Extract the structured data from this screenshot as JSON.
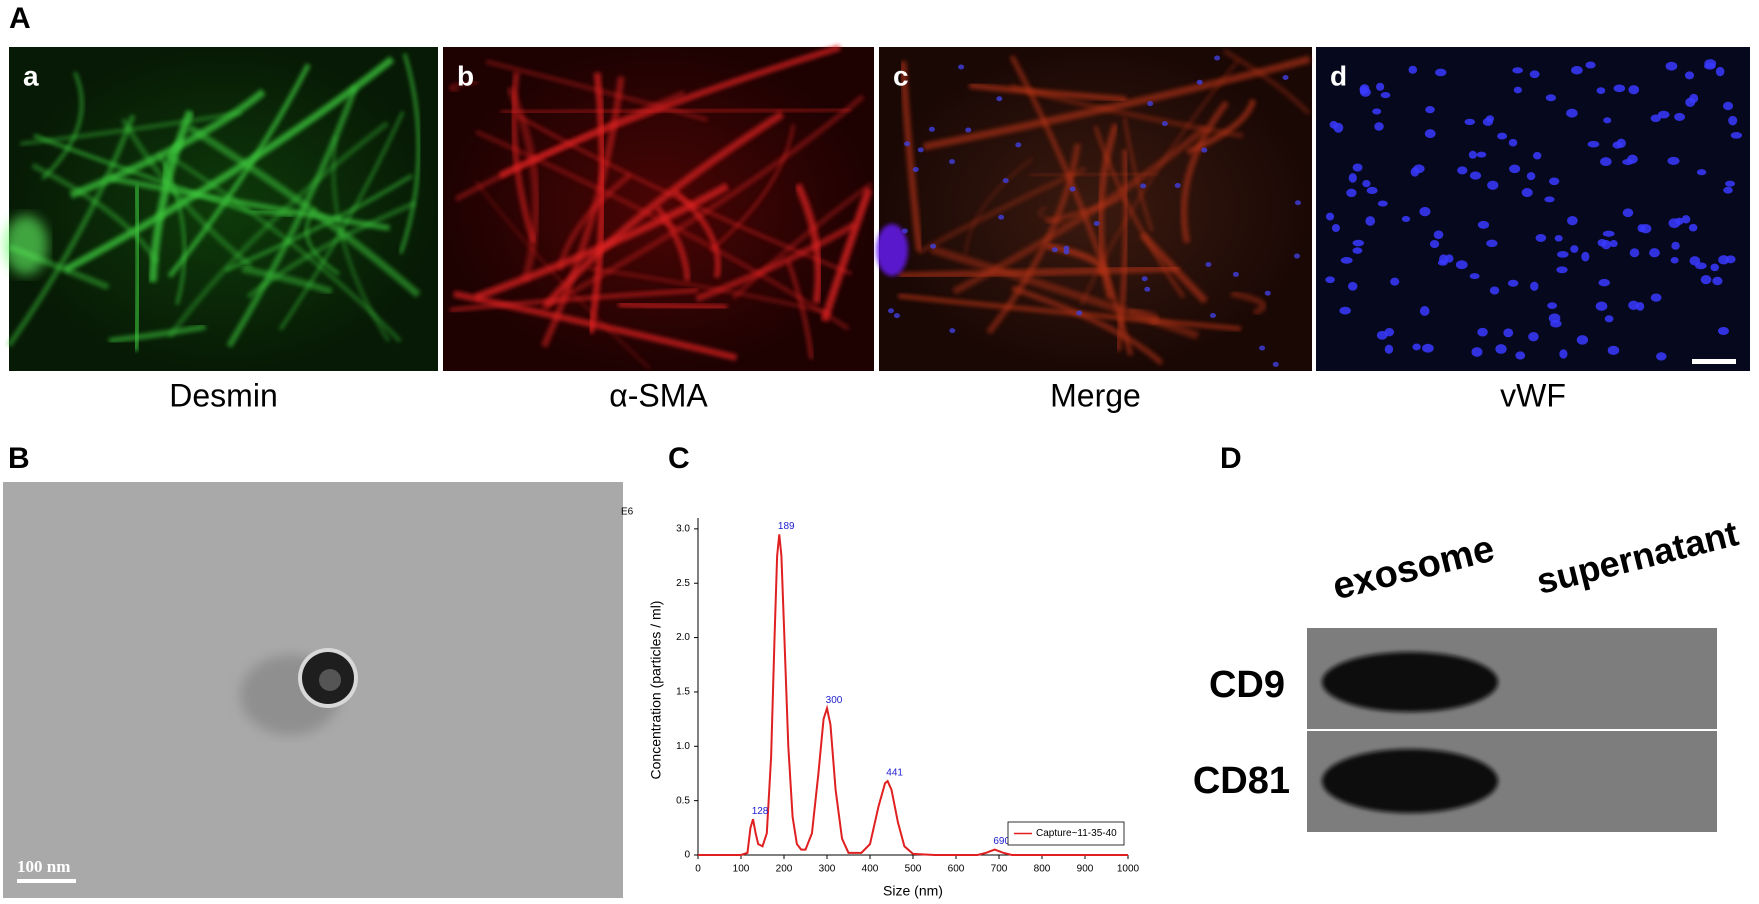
{
  "panel_a": {
    "letter": "A",
    "images": [
      {
        "letter": "a",
        "caption": "Desmin"
      },
      {
        "letter": "b",
        "caption": "α-SMA"
      },
      {
        "letter": "c",
        "caption": "Merge"
      },
      {
        "letter": "d",
        "caption": "vWF"
      }
    ]
  },
  "panel_b": {
    "letter": "B",
    "scale_bar": "100 nm"
  },
  "panel_c": {
    "letter": "C"
  },
  "chart_data": {
    "type": "line",
    "exponent_label": "E6",
    "x_label": "Size (nm)",
    "y_label": "Concentration (particles / ml)",
    "xlim": [
      0,
      1000
    ],
    "xticks": [
      0,
      100,
      200,
      300,
      400,
      500,
      600,
      700,
      800,
      900,
      1000
    ],
    "ylim": [
      0,
      3.1
    ],
    "yticks": [
      0,
      0.5,
      {
        "value": 1,
        "label": "1.0"
      },
      1.5,
      {
        "value": 2,
        "label": "2.0"
      },
      2.5,
      {
        "value": 3,
        "label": "3.0"
      }
    ],
    "x": [
      0,
      100,
      115,
      122,
      128,
      134,
      140,
      150,
      160,
      170,
      178,
      184,
      189,
      194,
      200,
      210,
      220,
      230,
      240,
      250,
      265,
      280,
      292,
      300,
      308,
      320,
      335,
      350,
      380,
      400,
      420,
      435,
      441,
      450,
      465,
      480,
      500,
      550,
      650,
      670,
      690,
      710,
      730,
      1000
    ],
    "series": [
      {
        "name": "Capture~11-35-40",
        "color": "#e02020",
        "values": [
          0,
          0,
          0.02,
          0.25,
          0.33,
          0.2,
          0.1,
          0.08,
          0.2,
          0.9,
          2.0,
          2.75,
          2.95,
          2.75,
          2.1,
          1.0,
          0.35,
          0.1,
          0.05,
          0.05,
          0.2,
          0.75,
          1.25,
          1.35,
          1.2,
          0.6,
          0.15,
          0.02,
          0.02,
          0.1,
          0.45,
          0.66,
          0.68,
          0.6,
          0.3,
          0.08,
          0.01,
          0,
          0,
          0.02,
          0.05,
          0.02,
          0,
          0
        ]
      }
    ],
    "peaks": [
      {
        "x": 128,
        "y": 0.33
      },
      {
        "x": 189,
        "y": 2.95
      },
      {
        "x": 300,
        "y": 1.35
      },
      {
        "x": 441,
        "y": 0.68
      },
      {
        "x": 690,
        "y": 0.05
      }
    ],
    "legend": "lower right"
  },
  "panel_d": {
    "letter": "D",
    "lanes": [
      "exosome",
      "supernatant"
    ],
    "rows": [
      "CD9",
      "CD81"
    ]
  }
}
